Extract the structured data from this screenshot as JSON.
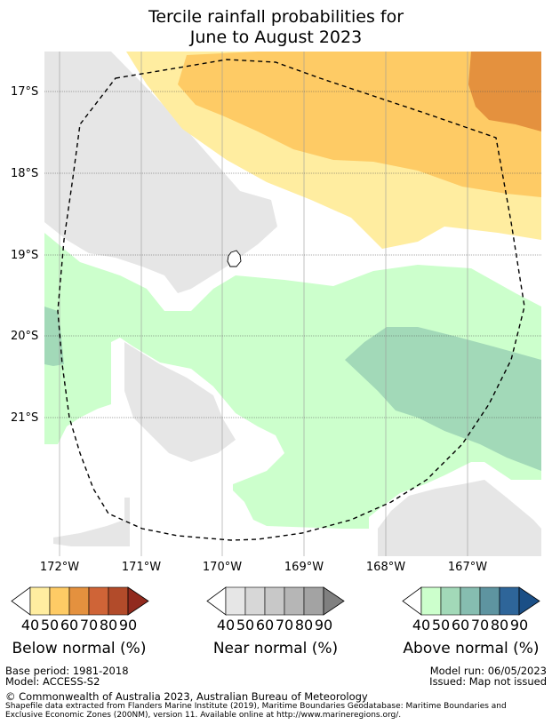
{
  "title": {
    "line1": "Tercile rainfall probabilities for",
    "line2": "June to August 2023"
  },
  "map": {
    "lat_labels": [
      "17°S",
      "18°S",
      "19°S",
      "20°S",
      "21°S"
    ],
    "lon_labels": [
      "172°W",
      "171°W",
      "170°W",
      "169°W",
      "168°W",
      "167°W"
    ],
    "layers": [
      "below-normal-50-60",
      "below-normal-60-70",
      "below-normal-70-80",
      "near-normal-40-50",
      "above-normal-40-50",
      "above-normal-50-60"
    ]
  },
  "colorbars": {
    "ticks": [
      "40",
      "50",
      "60",
      "70",
      "80",
      "90"
    ],
    "below": {
      "label": "Below normal (%)",
      "colors": [
        "#ffffff",
        "#ffeda0",
        "#fecb65",
        "#e4913e",
        "#cf6437",
        "#b24b2a",
        "#912a1e"
      ]
    },
    "near": {
      "label": "Near normal (%)",
      "colors": [
        "#ffffff",
        "#e6e6e6",
        "#d7d7d7",
        "#c8c8c8",
        "#b6b6b6",
        "#a3a3a3",
        "#808080"
      ]
    },
    "above": {
      "label": "Above normal (%)",
      "colors": [
        "#ffffff",
        "#ccffcc",
        "#a2d9b8",
        "#86bdb0",
        "#5e94a0",
        "#2e6599",
        "#1b4f86"
      ]
    }
  },
  "footer": {
    "base_period": "Base period: 1981-2018",
    "model": "Model: ACCESS-S2",
    "model_run": "Model run: 06/05/2023",
    "issued": "Issued: Map not issued",
    "copyright": "© Commonwealth of Australia 2023, Australian Bureau of Meteorology",
    "shapefile_line1": "Shapefile data extracted from Flanders Marine Institute (2019), Maritime Boundaries Geodatabase: Maritime Boundaries and",
    "shapefile_line2": "Exclusive Economic Zones (200NM), version 11. Available online at http://www.marineregions.org/."
  }
}
